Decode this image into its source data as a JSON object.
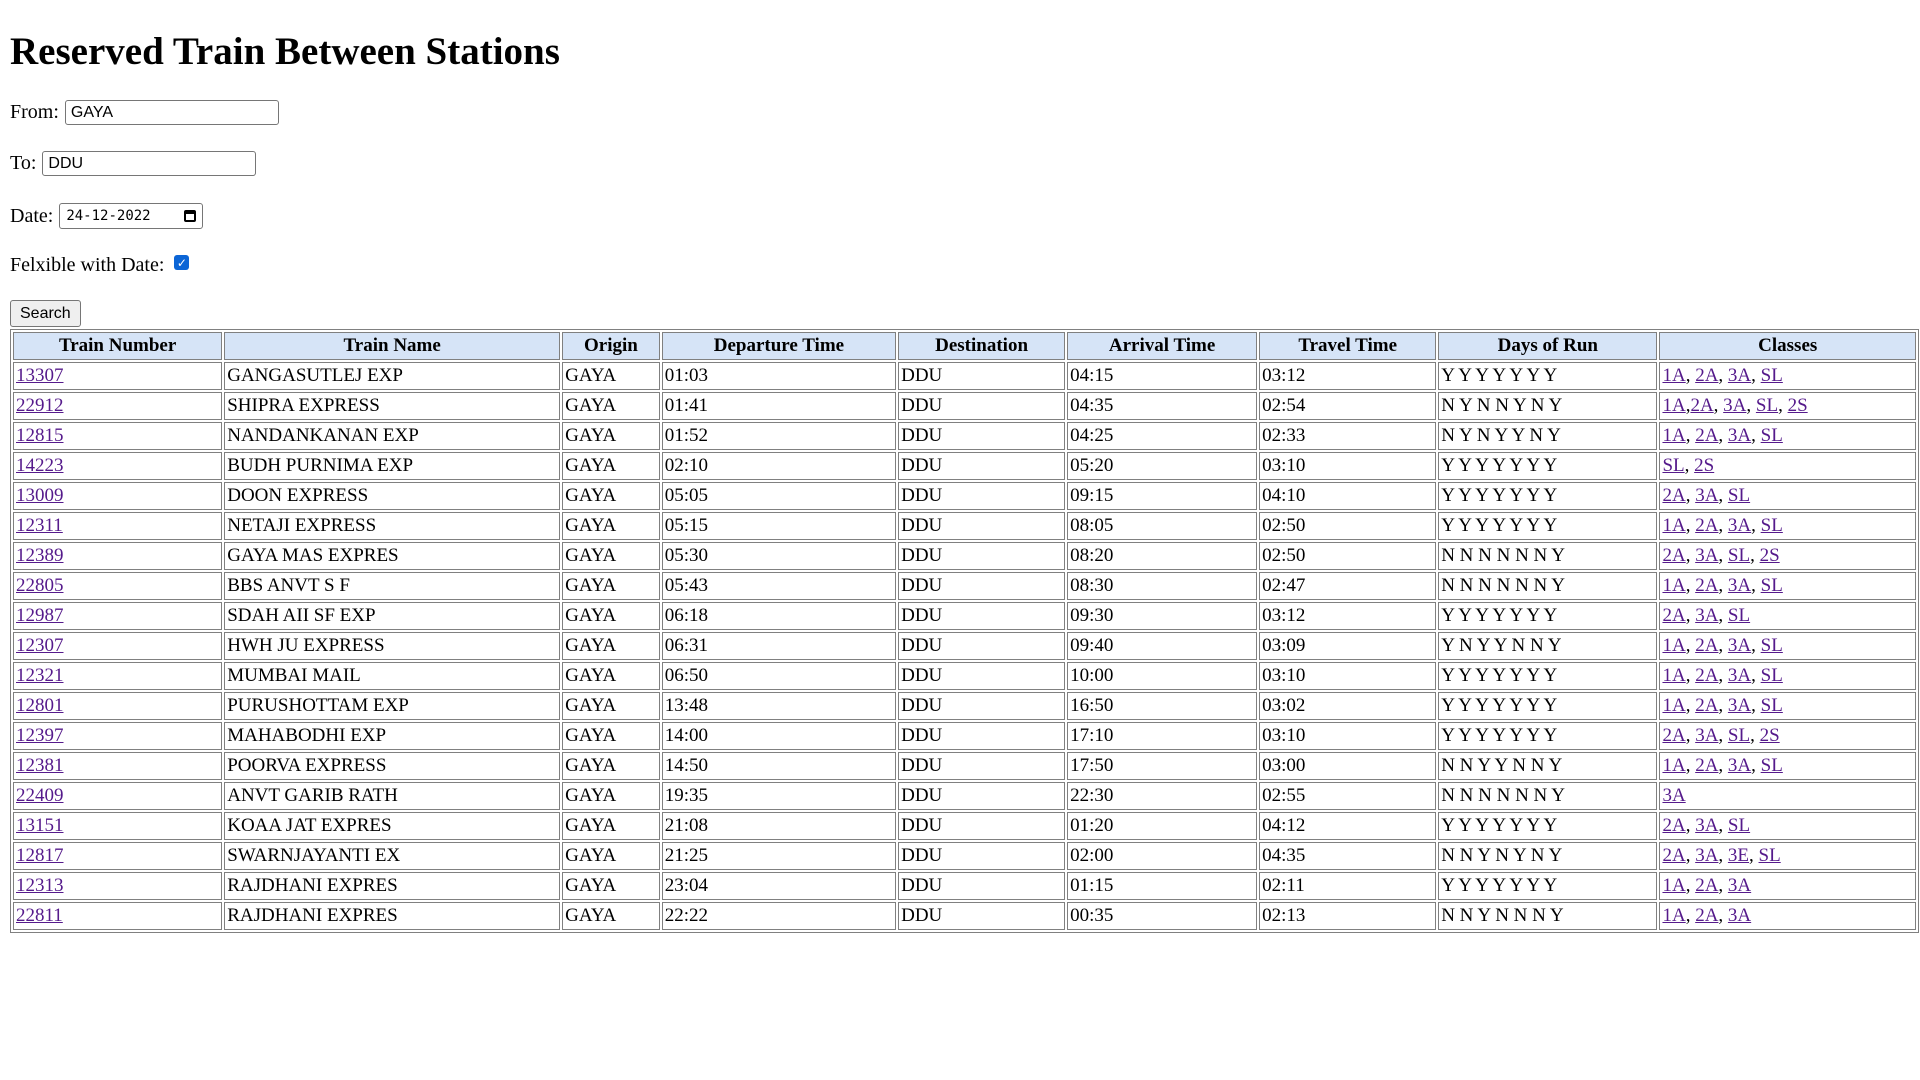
{
  "page_title": "Reserved Train Between Stations",
  "form": {
    "from_label": "From:",
    "from_value": "GAYA",
    "to_label": "To:",
    "to_value": "DDU",
    "date_label": "Date:",
    "date_value": "24-12-2022",
    "flexible_label": "Felxible with Date:",
    "flexible_checked": true,
    "search_label": "Search"
  },
  "table": {
    "headers": [
      "Train Number",
      "Train Name",
      "Origin",
      "Departure Time",
      "Destination",
      "Arrival Time",
      "Travel Time",
      "Days of Run",
      "Classes"
    ],
    "rows": [
      {
        "number": "13307",
        "name": "GANGASUTLEJ EXP",
        "origin": "GAYA",
        "departure": "01:03",
        "destination": "DDU",
        "arrival": "04:15",
        "travel": "03:12",
        "days": "Y Y Y Y Y Y Y",
        "classes": [
          "1A",
          "2A",
          "3A",
          "SL"
        ],
        "sep": ", "
      },
      {
        "number": "22912",
        "name": "SHIPRA EXPRESS",
        "origin": "GAYA",
        "departure": "01:41",
        "destination": "DDU",
        "arrival": "04:35",
        "travel": "02:54",
        "days": "N Y N N Y N Y",
        "classes": [
          "1A",
          "2A",
          "3A",
          "SL",
          "2S"
        ],
        "sep": ", ",
        "first_sep": ","
      },
      {
        "number": "12815",
        "name": "NANDANKANAN EXP",
        "origin": "GAYA",
        "departure": "01:52",
        "destination": "DDU",
        "arrival": "04:25",
        "travel": "02:33",
        "days": "N Y N Y Y N Y",
        "classes": [
          "1A",
          "2A",
          "3A",
          "SL"
        ],
        "sep": ", "
      },
      {
        "number": "14223",
        "name": "BUDH PURNIMA EXP",
        "origin": "GAYA",
        "departure": "02:10",
        "destination": "DDU",
        "arrival": "05:20",
        "travel": "03:10",
        "days": "Y Y Y Y Y Y Y",
        "classes": [
          "SL",
          "2S"
        ],
        "sep": ", "
      },
      {
        "number": "13009",
        "name": "DOON EXPRESS",
        "origin": "GAYA",
        "departure": "05:05",
        "destination": "DDU",
        "arrival": "09:15",
        "travel": "04:10",
        "days": "Y Y Y Y Y Y Y",
        "classes": [
          "2A",
          "3A",
          "SL"
        ],
        "sep": ", "
      },
      {
        "number": "12311",
        "name": "NETAJI EXPRESS",
        "origin": "GAYA",
        "departure": "05:15",
        "destination": "DDU",
        "arrival": "08:05",
        "travel": "02:50",
        "days": "Y Y Y Y Y Y Y",
        "classes": [
          "1A",
          "2A",
          "3A",
          "SL"
        ],
        "sep": ", "
      },
      {
        "number": "12389",
        "name": "GAYA MAS EXPRES",
        "origin": "GAYA",
        "departure": "05:30",
        "destination": "DDU",
        "arrival": "08:20",
        "travel": "02:50",
        "days": "N N N N N N Y",
        "classes": [
          "2A",
          "3A",
          "SL",
          "2S"
        ],
        "sep": ", "
      },
      {
        "number": "22805",
        "name": "BBS ANVT S F",
        "origin": "GAYA",
        "departure": "05:43",
        "destination": "DDU",
        "arrival": "08:30",
        "travel": "02:47",
        "days": "N N N N N N Y",
        "classes": [
          "1A",
          "2A",
          "3A",
          "SL"
        ],
        "sep": ", "
      },
      {
        "number": "12987",
        "name": "SDAH AII SF EXP",
        "origin": "GAYA",
        "departure": "06:18",
        "destination": "DDU",
        "arrival": "09:30",
        "travel": "03:12",
        "days": "Y Y Y Y Y Y Y",
        "classes": [
          "2A",
          "3A",
          "SL"
        ],
        "sep": ", "
      },
      {
        "number": "12307",
        "name": "HWH JU EXPRESS",
        "origin": "GAYA",
        "departure": "06:31",
        "destination": "DDU",
        "arrival": "09:40",
        "travel": "03:09",
        "days": "Y N Y Y N N Y",
        "classes": [
          "1A",
          "2A",
          "3A",
          "SL"
        ],
        "sep": ", "
      },
      {
        "number": "12321",
        "name": "MUMBAI MAIL",
        "origin": "GAYA",
        "departure": "06:50",
        "destination": "DDU",
        "arrival": "10:00",
        "travel": "03:10",
        "days": "Y Y Y Y Y Y Y",
        "classes": [
          "1A",
          "2A",
          "3A",
          "SL"
        ],
        "sep": ", "
      },
      {
        "number": "12801",
        "name": "PURUSHOTTAM EXP",
        "origin": "GAYA",
        "departure": "13:48",
        "destination": "DDU",
        "arrival": "16:50",
        "travel": "03:02",
        "days": "Y Y Y Y Y Y Y",
        "classes": [
          "1A",
          "2A",
          "3A",
          "SL"
        ],
        "sep": ", "
      },
      {
        "number": "12397",
        "name": "MAHABODHI EXP",
        "origin": "GAYA",
        "departure": "14:00",
        "destination": "DDU",
        "arrival": "17:10",
        "travel": "03:10",
        "days": "Y Y Y Y Y Y Y",
        "classes": [
          "2A",
          "3A",
          "SL",
          "2S"
        ],
        "sep": ", "
      },
      {
        "number": "12381",
        "name": "POORVA EXPRESS",
        "origin": "GAYA",
        "departure": "14:50",
        "destination": "DDU",
        "arrival": "17:50",
        "travel": "03:00",
        "days": "N N Y Y N N Y",
        "classes": [
          "1A",
          "2A",
          "3A",
          "SL"
        ],
        "sep": ", "
      },
      {
        "number": "22409",
        "name": "ANVT GARIB RATH",
        "origin": "GAYA",
        "departure": "19:35",
        "destination": "DDU",
        "arrival": "22:30",
        "travel": "02:55",
        "days": "N N N N N N Y",
        "classes": [
          "3A"
        ],
        "sep": ", "
      },
      {
        "number": "13151",
        "name": "KOAA JAT EXPRES",
        "origin": "GAYA",
        "departure": "21:08",
        "destination": "DDU",
        "arrival": "01:20",
        "travel": "04:12",
        "days": "Y Y Y Y Y Y Y",
        "classes": [
          "2A",
          "3A",
          "SL"
        ],
        "sep": ", "
      },
      {
        "number": "12817",
        "name": "SWARNJAYANTI EX",
        "origin": "GAYA",
        "departure": "21:25",
        "destination": "DDU",
        "arrival": "02:00",
        "travel": "04:35",
        "days": "N N Y N Y N Y",
        "classes": [
          "2A",
          "3A",
          "3E",
          "SL"
        ],
        "sep": ", "
      },
      {
        "number": "12313",
        "name": "RAJDHANI EXPRES",
        "origin": "GAYA",
        "departure": "23:04",
        "destination": "DDU",
        "arrival": "01:15",
        "travel": "02:11",
        "days": "Y Y Y Y Y Y Y",
        "classes": [
          "1A",
          "2A",
          "3A"
        ],
        "sep": ", "
      },
      {
        "number": "22811",
        "name": "RAJDHANI EXPRES",
        "origin": "GAYA",
        "departure": "22:22",
        "destination": "DDU",
        "arrival": "00:35",
        "travel": "02:13",
        "days": "N N Y N N N Y",
        "classes": [
          "1A",
          "2A",
          "3A"
        ],
        "sep": ", "
      }
    ]
  }
}
